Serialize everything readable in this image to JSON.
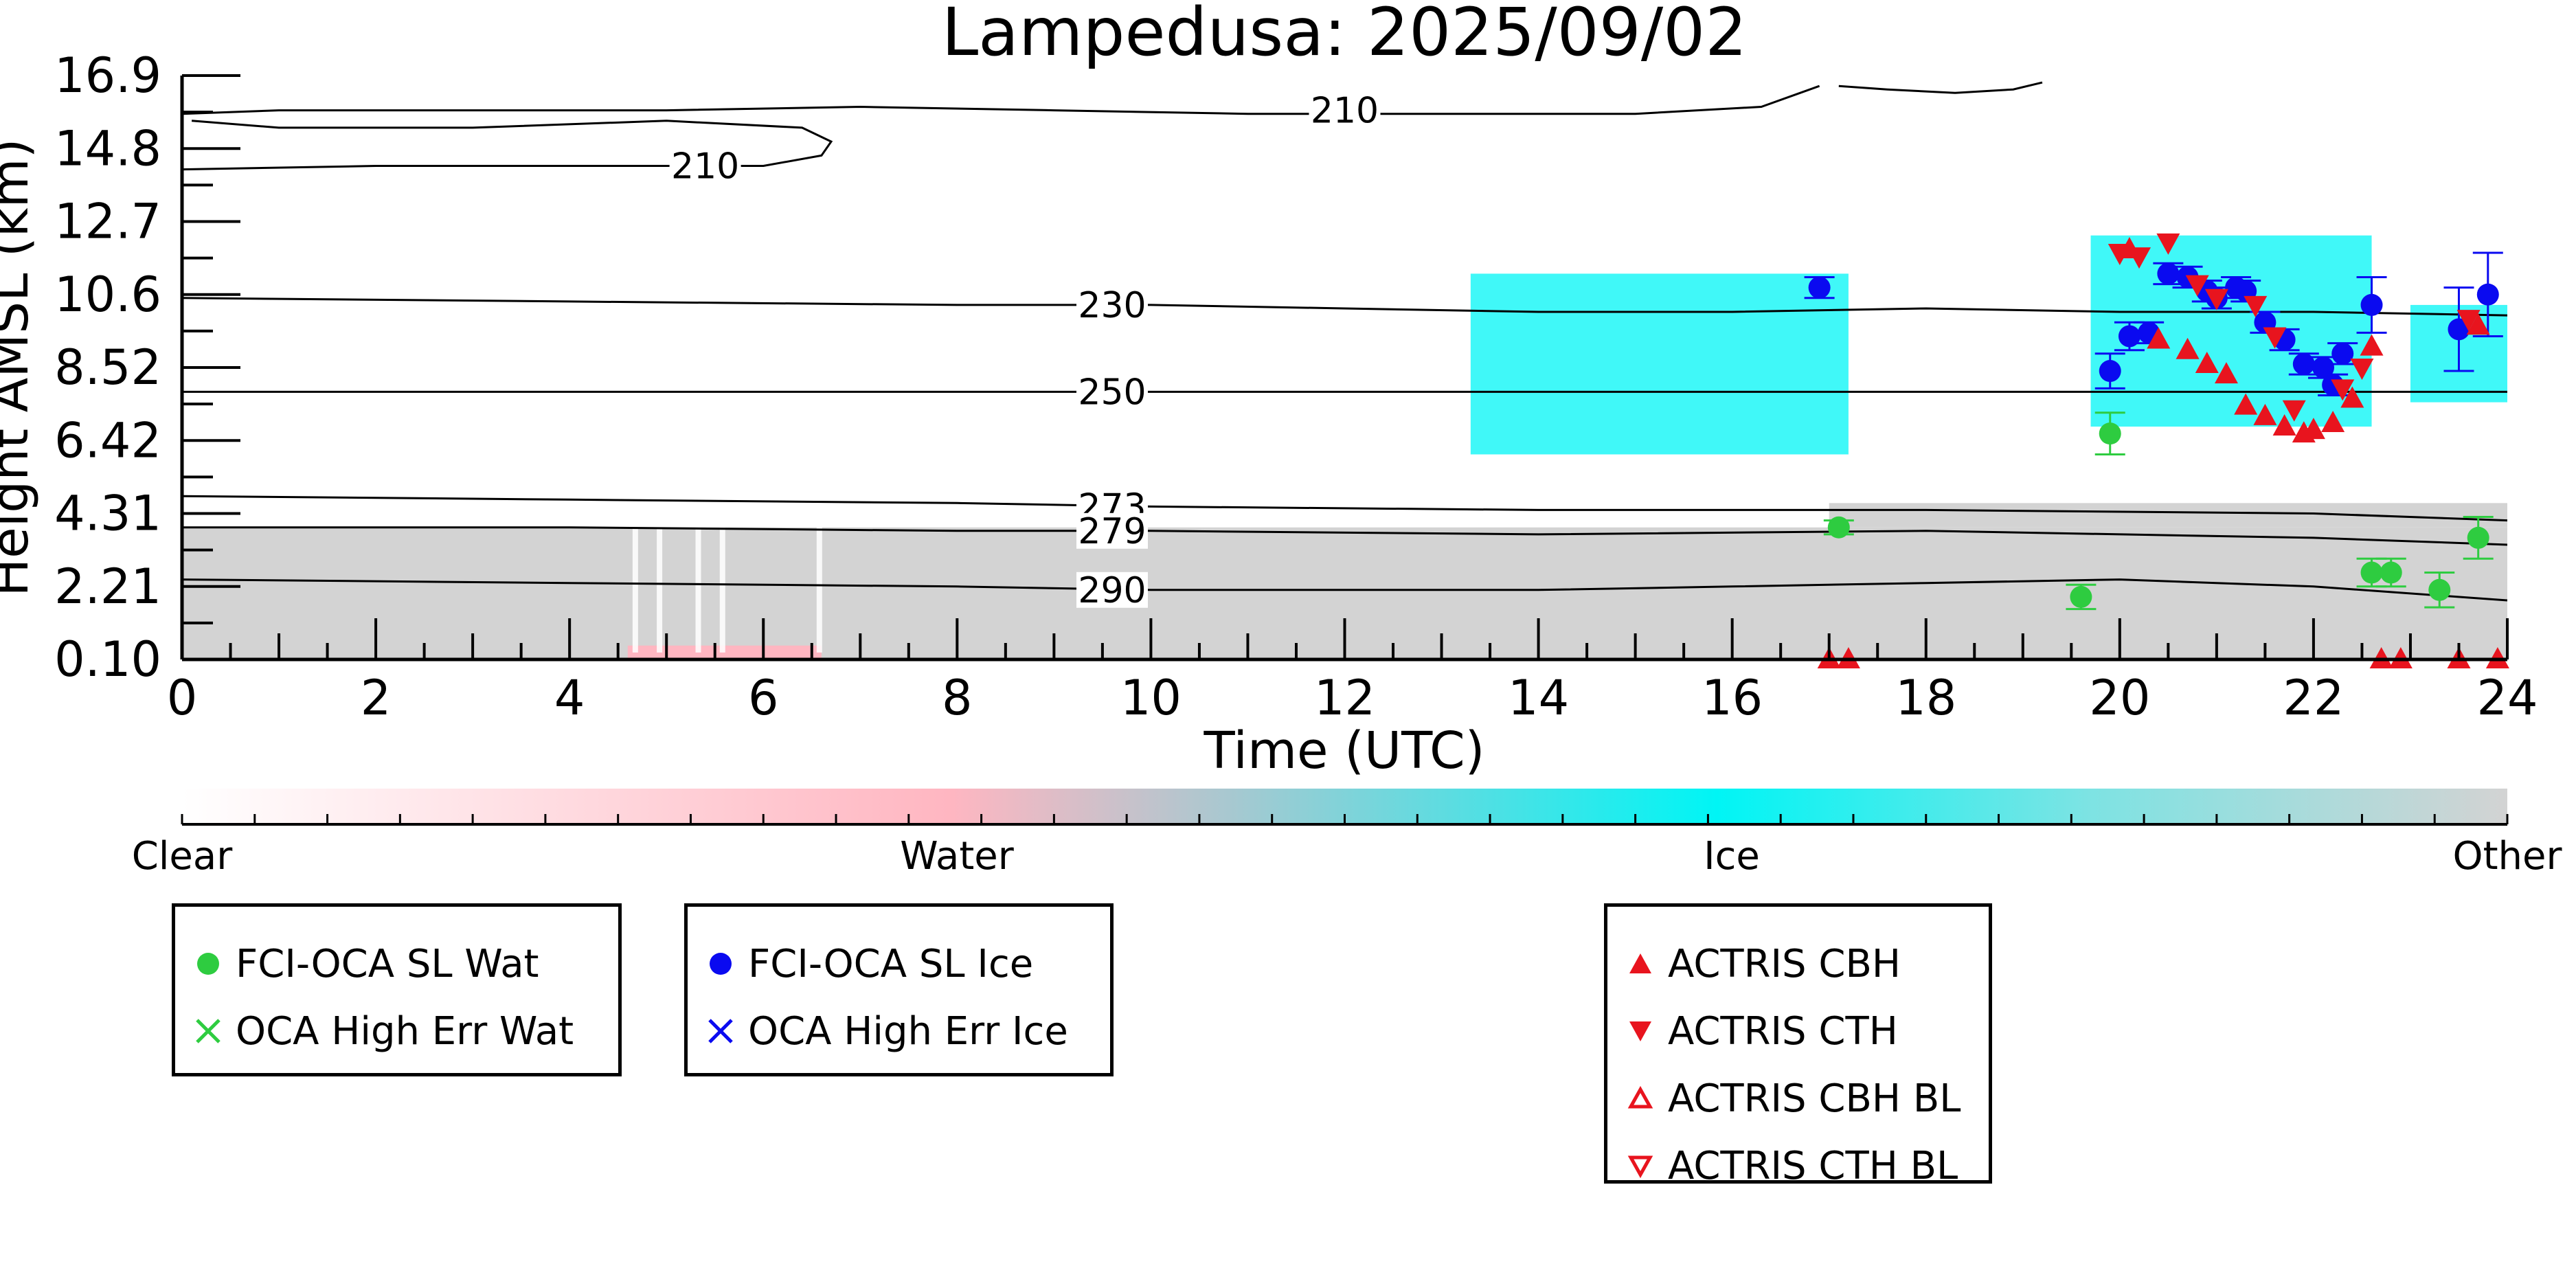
{
  "chart_data": {
    "type": "scatter",
    "title": "Lampedusa: 2025/09/02",
    "xlabel": "Time (UTC)",
    "ylabel": "Height AMSL (km)",
    "xlim": [
      0,
      24
    ],
    "ylim": [
      0.1,
      16.9
    ],
    "x_ticks": [
      0,
      2,
      4,
      6,
      8,
      10,
      12,
      14,
      16,
      18,
      20,
      22,
      24
    ],
    "y_ticks": [
      "0.10",
      "2.21",
      "4.31",
      "6.42",
      "8.52",
      "10.6",
      "12.7",
      "14.8",
      "16.9"
    ],
    "colorbar": {
      "labels": [
        "Clear",
        "Water",
        "Ice",
        "Other"
      ],
      "colors": [
        "#ffffff",
        "#ffb6c1",
        "#00f5f5",
        "#d3d3d3"
      ]
    },
    "temperature_contours": [
      {
        "label": "210",
        "points": [
          [
            0,
            15.8
          ],
          [
            1,
            15.9
          ],
          [
            3,
            15.9
          ],
          [
            5,
            15.9
          ],
          [
            7,
            16.0
          ],
          [
            9,
            15.9
          ],
          [
            11,
            15.8
          ],
          [
            13,
            15.8
          ],
          [
            15,
            15.8
          ],
          [
            16.3,
            16.0
          ],
          [
            16.7,
            16.4
          ],
          [
            16.9,
            16.6
          ]
        ]
      },
      {
        "label": "210",
        "points": [
          [
            0,
            14.2
          ],
          [
            2,
            14.3
          ],
          [
            4,
            14.3
          ],
          [
            6,
            14.3
          ],
          [
            6.6,
            14.6
          ],
          [
            6.7,
            15.0
          ],
          [
            6.4,
            15.4
          ],
          [
            5,
            15.6
          ],
          [
            3,
            15.4
          ],
          [
            1,
            15.4
          ],
          [
            0.1,
            15.6
          ]
        ]
      },
      {
        "label": "210",
        "points": [
          [
            17.1,
            16.6
          ],
          [
            17.6,
            16.5
          ],
          [
            18.3,
            16.4
          ],
          [
            18.9,
            16.5
          ],
          [
            19.2,
            16.7
          ]
        ]
      },
      {
        "label": "230",
        "points": [
          [
            0,
            10.5
          ],
          [
            4,
            10.4
          ],
          [
            8,
            10.3
          ],
          [
            10,
            10.3
          ],
          [
            12,
            10.2
          ],
          [
            14,
            10.1
          ],
          [
            16,
            10.1
          ],
          [
            18,
            10.2
          ],
          [
            20,
            10.1
          ],
          [
            22,
            10.1
          ],
          [
            24,
            10.0
          ]
        ]
      },
      {
        "label": "250",
        "points": [
          [
            0,
            7.8
          ],
          [
            4,
            7.8
          ],
          [
            8,
            7.8
          ],
          [
            10,
            7.8
          ],
          [
            14,
            7.8
          ],
          [
            18,
            7.8
          ],
          [
            22,
            7.8
          ],
          [
            24,
            7.8
          ]
        ]
      },
      {
        "label": "273",
        "points": [
          [
            0,
            4.8
          ],
          [
            4,
            4.7
          ],
          [
            8,
            4.6
          ],
          [
            10,
            4.5
          ],
          [
            14,
            4.4
          ],
          [
            18,
            4.4
          ],
          [
            22,
            4.3
          ],
          [
            24,
            4.1
          ]
        ]
      },
      {
        "label": "279",
        "points": [
          [
            0,
            3.9
          ],
          [
            4,
            3.9
          ],
          [
            8,
            3.8
          ],
          [
            10,
            3.8
          ],
          [
            14,
            3.7
          ],
          [
            18,
            3.8
          ],
          [
            22,
            3.6
          ],
          [
            24,
            3.4
          ]
        ]
      },
      {
        "label": "290",
        "points": [
          [
            0,
            2.4
          ],
          [
            4,
            2.3
          ],
          [
            8,
            2.2
          ],
          [
            10,
            2.1
          ],
          [
            14,
            2.1
          ],
          [
            16,
            2.2
          ],
          [
            18,
            2.3
          ],
          [
            20,
            2.4
          ],
          [
            22,
            2.2
          ],
          [
            24,
            1.8
          ]
        ]
      }
    ],
    "series": [
      {
        "name": "FCI-OCA SL Wat",
        "color": "#2ecc40",
        "marker": "circle",
        "points": [
          {
            "x": 17.1,
            "y": 3.9,
            "err": 0.2
          },
          {
            "x": 19.6,
            "y": 1.9,
            "err": 0.35
          },
          {
            "x": 19.9,
            "y": 6.6,
            "err": 0.6
          },
          {
            "x": 22.6,
            "y": 2.6,
            "err": 0.4
          },
          {
            "x": 22.8,
            "y": 2.6,
            "err": 0.4
          },
          {
            "x": 23.3,
            "y": 2.1,
            "err": 0.5
          },
          {
            "x": 23.7,
            "y": 3.6,
            "err": 0.6
          }
        ]
      },
      {
        "name": "OCA High Err Wat",
        "color": "#2ecc40",
        "marker": "x",
        "points": []
      },
      {
        "name": "FCI-OCA SL Ice",
        "color": "#0a0af0",
        "marker": "circle",
        "points": [
          {
            "x": 16.9,
            "y": 10.8,
            "err": 0.3
          },
          {
            "x": 19.9,
            "y": 8.4,
            "err": 0.5
          },
          {
            "x": 20.1,
            "y": 9.4,
            "err": 0.4
          },
          {
            "x": 20.3,
            "y": 9.5,
            "err": 0.3
          },
          {
            "x": 20.5,
            "y": 11.2,
            "err": 0.3
          },
          {
            "x": 20.7,
            "y": 11.1,
            "err": 0.3
          },
          {
            "x": 20.9,
            "y": 10.7,
            "err": 0.3
          },
          {
            "x": 21.0,
            "y": 10.5,
            "err": 0.3
          },
          {
            "x": 21.2,
            "y": 10.8,
            "err": 0.3
          },
          {
            "x": 21.3,
            "y": 10.7,
            "err": 0.3
          },
          {
            "x": 21.5,
            "y": 9.8,
            "err": 0.3
          },
          {
            "x": 21.7,
            "y": 9.3,
            "err": 0.3
          },
          {
            "x": 21.9,
            "y": 8.6,
            "err": 0.3
          },
          {
            "x": 22.1,
            "y": 8.5,
            "err": 0.3
          },
          {
            "x": 22.2,
            "y": 8.0,
            "err": 0.3
          },
          {
            "x": 22.3,
            "y": 8.9,
            "err": 0.3
          },
          {
            "x": 22.6,
            "y": 10.3,
            "err": 0.8
          },
          {
            "x": 23.5,
            "y": 9.6,
            "err": 1.2
          },
          {
            "x": 23.8,
            "y": 10.6,
            "err": 1.2
          }
        ]
      },
      {
        "name": "OCA High Err Ice",
        "color": "#0a0af0",
        "marker": "x",
        "points": []
      },
      {
        "name": "ACTRIS CBH",
        "color": "#e8141e",
        "marker": "triangle-up",
        "points": [
          {
            "x": 20.4,
            "y": 9.3
          },
          {
            "x": 20.7,
            "y": 9.0
          },
          {
            "x": 20.9,
            "y": 8.6
          },
          {
            "x": 21.1,
            "y": 8.3
          },
          {
            "x": 21.3,
            "y": 7.4
          },
          {
            "x": 21.5,
            "y": 7.1
          },
          {
            "x": 21.7,
            "y": 6.8
          },
          {
            "x": 21.9,
            "y": 6.6
          },
          {
            "x": 22.0,
            "y": 6.7
          },
          {
            "x": 22.2,
            "y": 6.9
          },
          {
            "x": 22.4,
            "y": 7.6
          },
          {
            "x": 22.6,
            "y": 9.1
          },
          {
            "x": 20.1,
            "y": 11.9
          },
          {
            "x": 23.7,
            "y": 9.7
          },
          {
            "x": 17.0,
            "y": 0.1
          },
          {
            "x": 17.2,
            "y": 0.1
          },
          {
            "x": 22.7,
            "y": 0.1
          },
          {
            "x": 22.9,
            "y": 0.1
          },
          {
            "x": 23.5,
            "y": 0.1
          },
          {
            "x": 23.9,
            "y": 0.1
          }
        ]
      },
      {
        "name": "ACTRIS CTH",
        "color": "#e8141e",
        "marker": "triangle-down",
        "points": [
          {
            "x": 20.0,
            "y": 11.8
          },
          {
            "x": 20.2,
            "y": 11.7
          },
          {
            "x": 20.5,
            "y": 12.1
          },
          {
            "x": 20.8,
            "y": 10.9
          },
          {
            "x": 21.0,
            "y": 10.5
          },
          {
            "x": 21.4,
            "y": 10.3
          },
          {
            "x": 21.6,
            "y": 9.4
          },
          {
            "x": 21.8,
            "y": 7.3
          },
          {
            "x": 22.3,
            "y": 7.9
          },
          {
            "x": 22.5,
            "y": 8.5
          },
          {
            "x": 23.6,
            "y": 9.9
          }
        ]
      },
      {
        "name": "ACTRIS CBH BL",
        "color": "#e8141e",
        "marker": "triangle-up-open",
        "points": []
      },
      {
        "name": "ACTRIS CTH BL",
        "color": "#e8141e",
        "marker": "triangle-down-open",
        "points": []
      }
    ],
    "background_regions": [
      {
        "class": "Other",
        "x0": 0.0,
        "x1": 24.0,
        "y0": 0.1,
        "y1": 3.9
      },
      {
        "class": "Other",
        "x0": 17.0,
        "x1": 24.0,
        "y0": 3.9,
        "y1": 4.6
      },
      {
        "class": "Water",
        "x0": 4.6,
        "x1": 6.6,
        "y0": 0.1,
        "y1": 0.5
      },
      {
        "class": "Ice",
        "x0": 13.3,
        "x1": 17.2,
        "y0": 6.0,
        "y1": 11.2
      },
      {
        "class": "Ice",
        "x0": 19.7,
        "x1": 22.6,
        "y0": 6.8,
        "y1": 12.3
      },
      {
        "class": "Ice",
        "x0": 23.0,
        "x1": 24.0,
        "y0": 7.5,
        "y1": 10.3
      }
    ],
    "legends": [
      {
        "entries": [
          "FCI-OCA SL Wat",
          "OCA High Err Wat"
        ]
      },
      {
        "entries": [
          "FCI-OCA SL Ice",
          "OCA High Err Ice"
        ]
      },
      {
        "entries": [
          "ACTRIS CBH",
          "ACTRIS CTH",
          "ACTRIS CBH BL",
          "ACTRIS CTH BL"
        ]
      }
    ]
  }
}
